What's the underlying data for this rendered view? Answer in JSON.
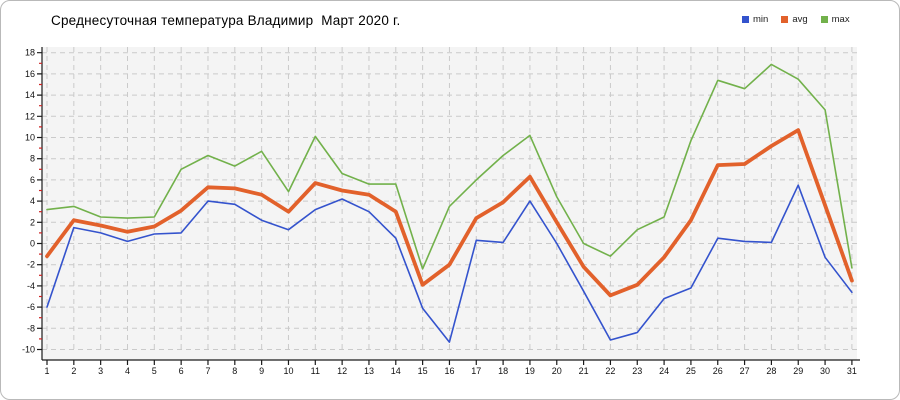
{
  "chart_data": {
    "type": "line",
    "title": "Среднесуточная температура Владимир  Март 2020 г.",
    "x": [
      1,
      2,
      3,
      4,
      5,
      6,
      7,
      8,
      9,
      10,
      11,
      12,
      13,
      14,
      15,
      16,
      17,
      18,
      19,
      20,
      21,
      22,
      23,
      24,
      25,
      26,
      27,
      28,
      29,
      30,
      31
    ],
    "series": [
      {
        "name": "min",
        "color": "#3453cd",
        "values": [
          -6,
          1.5,
          1,
          0.2,
          0.9,
          1,
          4,
          3.7,
          2.2,
          1.3,
          3.2,
          4.2,
          3,
          0.5,
          -6.1,
          -9.3,
          0.3,
          0.1,
          4,
          0,
          -4.5,
          -9.1,
          -8.4,
          -5.2,
          -4.2,
          0.5,
          0.2,
          0.1,
          5.5,
          -1.3,
          -4.6
        ]
      },
      {
        "name": "avg",
        "color": "#e2612b",
        "values": [
          -1.2,
          2.2,
          1.7,
          1.1,
          1.6,
          3.1,
          5.3,
          5.2,
          4.6,
          3,
          5.7,
          5,
          4.6,
          3,
          -3.9,
          -2,
          2.4,
          3.9,
          6.3,
          2,
          -2.2,
          -4.9,
          -3.9,
          -1.3,
          2.2,
          7.4,
          7.5,
          9.2,
          10.7,
          3.6,
          -3.5
        ]
      },
      {
        "name": "max",
        "color": "#72b14b",
        "values": [
          3.2,
          3.5,
          2.5,
          2.4,
          2.5,
          7,
          8.3,
          7.3,
          8.7,
          4.9,
          10.1,
          6.6,
          5.6,
          5.6,
          -2.4,
          3.5,
          6,
          8.3,
          10.2,
          4.4,
          0,
          -1.2,
          1.3,
          2.5,
          9.7,
          15.4,
          14.6,
          16.9,
          15.5,
          12.6,
          -2.3
        ]
      }
    ],
    "ylim": [
      -10,
      18
    ],
    "ytick_step": 2,
    "y_minor_tick_step": 1,
    "xtick_labels": [
      "1",
      "2",
      "3",
      "4",
      "5",
      "6",
      "7",
      "8",
      "9",
      "10",
      "11",
      "12",
      "13",
      "14",
      "15",
      "16",
      "17",
      "18",
      "19",
      "20",
      "21",
      "22",
      "23",
      "24",
      "25",
      "26",
      "27",
      "28",
      "29",
      "30",
      "31"
    ],
    "grid": true,
    "legend_position": "top-right"
  },
  "legend": {
    "items": [
      {
        "label": "min",
        "color": "#3453cd"
      },
      {
        "label": "avg",
        "color": "#e2612b"
      },
      {
        "label": "max",
        "color": "#72b14b"
      }
    ]
  },
  "colors": {
    "plot_background": "#f4f4f4",
    "gridline": "#cacaca",
    "axis": "#1a1a1a",
    "minor_tick": "#cc2222",
    "tick_label": "#111111"
  }
}
